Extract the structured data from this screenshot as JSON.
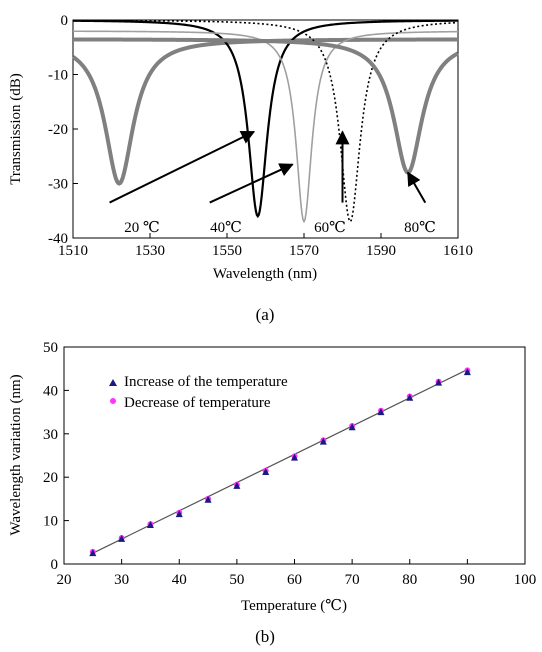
{
  "chart_data": [
    {
      "type": "line",
      "panel_label": "(a)",
      "xlabel": "Wavelength (nm)",
      "ylabel": "Transmission (dB)",
      "xlim": [
        1510,
        1610
      ],
      "ylim": [
        -40,
        0
      ],
      "xticks": [
        1510,
        1530,
        1550,
        1570,
        1590,
        1610
      ],
      "yticks": [
        0,
        -10,
        -20,
        -30,
        -40
      ],
      "grid": false,
      "series": [
        {
          "label": "20 ℃",
          "style": "thick-gray",
          "color": "#808080",
          "dip_wavelength": 1522,
          "dip_depth": -30,
          "baseline": -3.5,
          "width": 4.5
        },
        {
          "label": "40℃",
          "style": "solid-black",
          "color": "#000000",
          "dip_wavelength": 1558,
          "dip_depth": -36,
          "baseline": 0,
          "width": 3.0
        },
        {
          "label": "60℃",
          "style": "thin-gray",
          "color": "#a0a0a0",
          "dip_wavelength": 1570,
          "dip_depth": -37,
          "baseline": -2,
          "width": 2.5
        },
        {
          "label": "80℃",
          "style": "dotted-black",
          "color": "#000000",
          "dip_wavelength": 1582,
          "dip_depth": -37,
          "baseline": 0,
          "width": 3.2
        },
        {
          "label": "",
          "style": "thick-gray",
          "color": "#808080",
          "dip_wavelength": 1597,
          "dip_depth": -28,
          "baseline": -3.5,
          "width": 4.5
        }
      ],
      "annotations": [
        {
          "text": "20 ℃",
          "arrow_to": [
            1557,
            -20.5
          ]
        },
        {
          "text": "40℃",
          "arrow_to": [
            1567,
            -26.5
          ]
        },
        {
          "text": "60℃",
          "arrow_to": [
            1580,
            -20.5
          ]
        },
        {
          "text": "80℃",
          "arrow_to": [
            1597,
            -28
          ]
        }
      ]
    },
    {
      "type": "scatter",
      "panel_label": "(b)",
      "xlabel": "Temperature (℃)",
      "ylabel": "Wavelength variation (nm)",
      "xlim": [
        20,
        100
      ],
      "ylim": [
        0,
        50
      ],
      "xticks": [
        20,
        30,
        40,
        50,
        60,
        70,
        80,
        90,
        100
      ],
      "yticks": [
        0,
        10,
        20,
        30,
        40,
        50
      ],
      "grid": false,
      "legend_position": "top-left",
      "series": [
        {
          "name": "Increase of the temperature",
          "marker": "triangle",
          "color": "#1a1a80",
          "x": [
            25,
            30,
            35,
            40,
            45,
            50,
            55,
            60,
            65,
            70,
            75,
            80,
            85,
            90
          ],
          "y": [
            2.5,
            5.8,
            9.0,
            11.5,
            14.8,
            18.0,
            21.2,
            24.5,
            28.2,
            31.5,
            35.0,
            38.3,
            41.8,
            44.2
          ]
        },
        {
          "name": "Decrease of temperature",
          "marker": "circle",
          "color": "#ff33ff",
          "x": [
            25,
            30,
            35,
            40,
            45,
            50,
            55,
            60,
            65,
            70,
            75,
            80,
            85,
            90
          ],
          "y": [
            2.8,
            6.0,
            9.2,
            11.8,
            15.0,
            18.3,
            21.5,
            24.8,
            28.5,
            31.8,
            35.3,
            38.6,
            42.0,
            44.6
          ]
        }
      ],
      "fit_line": {
        "x": [
          25,
          90
        ],
        "y": [
          2.5,
          44.8
        ],
        "color": "#555555"
      }
    }
  ]
}
